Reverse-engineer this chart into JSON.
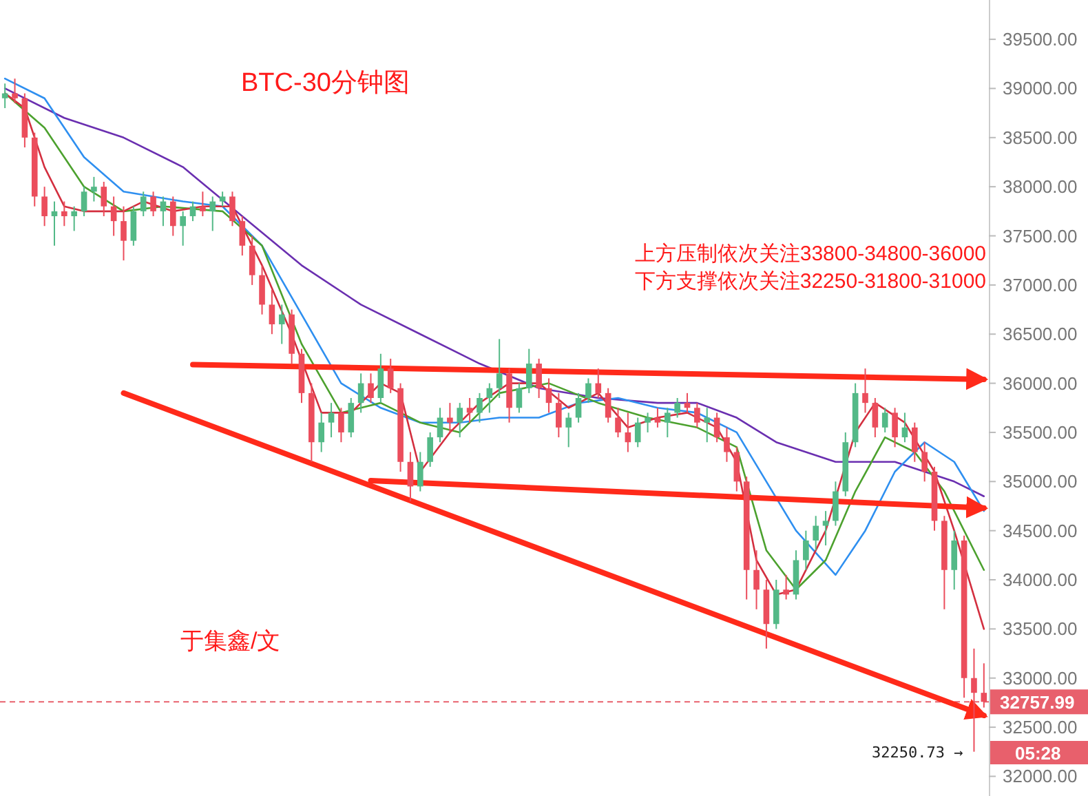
{
  "chart_data": {
    "type": "candlestick",
    "title": "BTC-30分钟图",
    "categories": [
      null,
      null,
      null,
      null,
      null,
      null,
      null,
      null,
      null,
      null,
      null,
      null,
      null,
      null,
      null,
      null,
      null,
      null,
      null,
      null,
      null,
      null,
      null,
      null,
      null,
      null,
      null,
      null,
      null,
      null,
      null,
      null,
      null,
      null,
      null,
      null,
      null,
      null,
      null,
      null,
      null,
      null,
      null,
      null,
      null,
      null,
      null,
      null,
      null,
      null,
      null,
      null,
      null,
      null,
      null,
      null,
      null,
      null,
      null,
      null,
      null,
      null,
      null,
      null,
      null,
      null,
      null,
      null,
      null,
      null,
      null,
      null,
      null,
      null,
      null,
      null,
      null,
      null,
      null,
      null,
      null,
      null,
      null,
      null,
      null,
      null,
      null,
      null,
      null,
      null,
      null,
      null,
      null,
      null,
      null,
      null,
      null,
      null,
      null,
      null
    ],
    "ohlc": [
      [
        38900,
        39050,
        38800,
        38950
      ],
      [
        38950,
        39100,
        38850,
        38900
      ],
      [
        38900,
        38950,
        38400,
        38500
      ],
      [
        38500,
        38550,
        37800,
        37900
      ],
      [
        37900,
        38000,
        37600,
        37700
      ],
      [
        37700,
        37850,
        37400,
        37750
      ],
      [
        37750,
        37850,
        37600,
        37700
      ],
      [
        37700,
        37800,
        37550,
        37750
      ],
      [
        37750,
        38000,
        37700,
        37950
      ],
      [
        37950,
        38100,
        37850,
        38000
      ],
      [
        38000,
        38050,
        37700,
        37800
      ],
      [
        37800,
        37900,
        37500,
        37650
      ],
      [
        37650,
        37800,
        37250,
        37450
      ],
      [
        37450,
        37800,
        37400,
        37750
      ],
      [
        37750,
        37950,
        37700,
        37900
      ],
      [
        37900,
        37950,
        37700,
        37750
      ],
      [
        37750,
        37900,
        37600,
        37850
      ],
      [
        37850,
        37900,
        37500,
        37600
      ],
      [
        37600,
        37750,
        37400,
        37700
      ],
      [
        37700,
        37850,
        37650,
        37800
      ],
      [
        37800,
        37950,
        37700,
        37750
      ],
      [
        37750,
        37900,
        37550,
        37850
      ],
      [
        37850,
        37950,
        37800,
        37900
      ],
      [
        37900,
        37950,
        37600,
        37650
      ],
      [
        37650,
        37700,
        37300,
        37400
      ],
      [
        37400,
        37500,
        37000,
        37100
      ],
      [
        37100,
        37200,
        36700,
        36800
      ],
      [
        36800,
        36950,
        36500,
        36600
      ],
      [
        36600,
        36800,
        36400,
        36700
      ],
      [
        36700,
        36750,
        36200,
        36300
      ],
      [
        36300,
        36350,
        35800,
        35900
      ],
      [
        35900,
        36000,
        35200,
        35400
      ],
      [
        35400,
        35700,
        35300,
        35600
      ],
      [
        35600,
        35800,
        35450,
        35700
      ],
      [
        35700,
        35750,
        35400,
        35500
      ],
      [
        35500,
        35850,
        35450,
        35800
      ],
      [
        35800,
        36100,
        35700,
        36000
      ],
      [
        36000,
        36100,
        35800,
        35850
      ],
      [
        35850,
        36300,
        35800,
        36150
      ],
      [
        36150,
        36250,
        35900,
        35950
      ],
      [
        35950,
        36000,
        35100,
        35200
      ],
      [
        35200,
        35300,
        34800,
        34950
      ],
      [
        34950,
        35300,
        34900,
        35200
      ],
      [
        35200,
        35500,
        35150,
        35450
      ],
      [
        35450,
        35750,
        35400,
        35650
      ],
      [
        35650,
        35800,
        35500,
        35600
      ],
      [
        35600,
        35800,
        35450,
        35750
      ],
      [
        35750,
        35850,
        35600,
        35700
      ],
      [
        35700,
        35900,
        35600,
        35850
      ],
      [
        35850,
        36000,
        35700,
        35950
      ],
      [
        35950,
        36450,
        35850,
        36100
      ],
      [
        36100,
        36150,
        35600,
        35750
      ],
      [
        35750,
        36000,
        35700,
        35950
      ],
      [
        35950,
        36350,
        35900,
        36200
      ],
      [
        36200,
        36250,
        35850,
        35950
      ],
      [
        35950,
        36050,
        35700,
        35800
      ],
      [
        35800,
        35900,
        35450,
        35550
      ],
      [
        35550,
        35700,
        35350,
        35650
      ],
      [
        35650,
        35900,
        35600,
        35850
      ],
      [
        35850,
        36050,
        35800,
        36000
      ],
      [
        36000,
        36150,
        35850,
        35900
      ],
      [
        35900,
        35950,
        35600,
        35650
      ],
      [
        35650,
        35750,
        35450,
        35500
      ],
      [
        35500,
        35700,
        35300,
        35400
      ],
      [
        35400,
        35650,
        35350,
        35600
      ],
      [
        35600,
        35700,
        35500,
        35650
      ],
      [
        35650,
        35750,
        35550,
        35600
      ],
      [
        35600,
        35750,
        35450,
        35700
      ],
      [
        35700,
        35850,
        35650,
        35800
      ],
      [
        35800,
        35900,
        35700,
        35750
      ],
      [
        35750,
        35800,
        35550,
        35600
      ],
      [
        35600,
        35750,
        35400,
        35650
      ],
      [
        35650,
        35700,
        35400,
        35450
      ],
      [
        35450,
        35550,
        35200,
        35300
      ],
      [
        35300,
        35350,
        34900,
        35000
      ],
      [
        35000,
        35050,
        33800,
        34100
      ],
      [
        34100,
        34300,
        33700,
        33900
      ],
      [
        33900,
        34000,
        33300,
        33550
      ],
      [
        33550,
        34000,
        33500,
        33900
      ],
      [
        33900,
        34050,
        33800,
        33850
      ],
      [
        33850,
        34300,
        33800,
        34200
      ],
      [
        34200,
        34500,
        34100,
        34400
      ],
      [
        34400,
        34650,
        34300,
        34550
      ],
      [
        34550,
        34700,
        34350,
        34600
      ],
      [
        34600,
        35000,
        34550,
        34900
      ],
      [
        34900,
        35500,
        34850,
        35400
      ],
      [
        35400,
        36000,
        35350,
        35900
      ],
      [
        35900,
        36150,
        35700,
        35800
      ],
      [
        35800,
        35850,
        35450,
        35550
      ],
      [
        35550,
        35750,
        35500,
        35700
      ],
      [
        35700,
        35750,
        35350,
        35450
      ],
      [
        35450,
        35700,
        35400,
        35550
      ],
      [
        35550,
        35600,
        35200,
        35300
      ],
      [
        35300,
        35400,
        35000,
        35100
      ],
      [
        35100,
        35150,
        34500,
        34600
      ],
      [
        34600,
        34650,
        33700,
        34100
      ],
      [
        34100,
        34500,
        33900,
        34400
      ],
      [
        34400,
        34450,
        32800,
        33000
      ],
      [
        33000,
        33300,
        32250.73,
        32850
      ],
      [
        32850,
        33150,
        32700,
        32757.99
      ]
    ],
    "series": [
      {
        "type": "line",
        "color": "#6a2fb0",
        "values": [
          39000,
          null,
          null,
          null,
          null,
          null,
          38700,
          null,
          null,
          null,
          null,
          null,
          38500,
          null,
          null,
          null,
          null,
          null,
          38200,
          null,
          null,
          null,
          null,
          null,
          37700,
          null,
          null,
          null,
          null,
          null,
          37200,
          null,
          null,
          null,
          null,
          null,
          36800,
          null,
          null,
          null,
          null,
          null,
          36500,
          null,
          null,
          null,
          null,
          null,
          36200,
          null,
          null,
          null,
          null,
          null,
          35950,
          null,
          null,
          null,
          null,
          null,
          35850,
          null,
          null,
          null,
          null,
          null,
          35800,
          null,
          null,
          null,
          35800,
          null,
          null,
          null,
          35650,
          null,
          null,
          null,
          35400,
          null,
          null,
          null,
          null,
          null,
          35200,
          null,
          null,
          null,
          null,
          null,
          35200,
          null,
          null,
          null,
          null,
          null,
          35000,
          null,
          null,
          34850
        ]
      },
      {
        "type": "line",
        "color": "#2e8ff0",
        "values": [
          39100,
          null,
          null,
          null,
          38900,
          null,
          null,
          null,
          38300,
          null,
          null,
          null,
          37950,
          null,
          null,
          null,
          null,
          null,
          37850,
          null,
          null,
          null,
          37800,
          null,
          null,
          null,
          37400,
          null,
          null,
          null,
          36700,
          null,
          null,
          null,
          36000,
          null,
          null,
          null,
          35750,
          null,
          null,
          null,
          35600,
          null,
          null,
          null,
          35600,
          null,
          null,
          null,
          35650,
          null,
          null,
          null,
          35650,
          null,
          null,
          null,
          35800,
          null,
          null,
          null,
          35850,
          null,
          null,
          null,
          35750,
          null,
          null,
          null,
          35700,
          null,
          null,
          null,
          35500,
          null,
          null,
          35000,
          null,
          null,
          34500,
          null,
          null,
          null,
          34050,
          null,
          null,
          34500,
          null,
          null,
          35100,
          null,
          null,
          35400,
          null,
          null,
          35200,
          null,
          null,
          34700
        ]
      },
      {
        "type": "line",
        "color": "#4ca12e",
        "values": [
          38950,
          null,
          null,
          null,
          38600,
          null,
          null,
          null,
          38000,
          null,
          null,
          null,
          37750,
          null,
          null,
          null,
          37800,
          null,
          null,
          null,
          null,
          null,
          37750,
          null,
          null,
          null,
          37400,
          null,
          null,
          null,
          36400,
          null,
          null,
          null,
          35700,
          null,
          null,
          null,
          35800,
          null,
          null,
          null,
          35600,
          null,
          null,
          null,
          35500,
          null,
          null,
          null,
          35900,
          null,
          null,
          null,
          null,
          36000,
          null,
          null,
          null,
          null,
          35800,
          null,
          null,
          null,
          null,
          35650,
          null,
          null,
          null,
          null,
          35550,
          null,
          null,
          null,
          35350,
          null,
          null,
          34300,
          null,
          null,
          33900,
          null,
          null,
          34200,
          null,
          null,
          34900,
          null,
          null,
          35450,
          null,
          null,
          35300,
          null,
          null,
          34900,
          null,
          null,
          null,
          34100
        ]
      },
      {
        "type": "line",
        "color": "#d32f3f",
        "values": [
          38950,
          null,
          38800,
          null,
          38200,
          null,
          37800,
          null,
          37750,
          null,
          null,
          null,
          37750,
          null,
          37850,
          null,
          null,
          37750,
          null,
          null,
          37800,
          null,
          null,
          37800,
          null,
          null,
          37200,
          null,
          null,
          36500,
          null,
          null,
          35700,
          null,
          null,
          35700,
          null,
          null,
          36000,
          null,
          35900,
          null,
          35100,
          null,
          null,
          35500,
          null,
          null,
          35800,
          null,
          null,
          36000,
          null,
          null,
          36000,
          null,
          null,
          35750,
          null,
          null,
          35900,
          null,
          null,
          35550,
          null,
          null,
          35650,
          null,
          null,
          35700,
          null,
          null,
          35550,
          null,
          35200,
          null,
          34200,
          null,
          33850,
          null,
          33900,
          null,
          null,
          34500,
          null,
          null,
          35500,
          null,
          35800,
          null,
          null,
          35600,
          null,
          null,
          35100,
          null,
          34500,
          null,
          null,
          33500
        ]
      },
      {
        "type": "line",
        "color": "#ff2a1a",
        "values": [
          null,
          null,
          null,
          null,
          null,
          null,
          null,
          null,
          null,
          null,
          null,
          null,
          null,
          null,
          null,
          null,
          null,
          null,
          null,
          36190,
          null,
          null,
          null,
          null,
          null,
          null,
          null,
          null,
          null,
          null,
          null,
          null,
          null,
          null,
          null,
          null,
          null,
          null,
          null,
          null,
          null,
          null,
          null,
          null,
          null,
          null,
          null,
          null,
          null,
          null,
          null,
          null,
          null,
          null,
          null,
          null,
          null,
          null,
          null,
          null,
          null,
          null,
          null,
          null,
          null,
          null,
          null,
          null,
          null,
          null,
          null,
          null,
          null,
          null,
          null,
          null,
          null,
          null,
          null,
          null,
          null,
          null,
          null,
          null,
          null,
          null,
          null,
          null,
          null,
          null,
          null,
          null,
          null,
          null,
          null,
          null,
          null,
          null,
          null,
          36040
        ]
      },
      {
        "type": "line",
        "color": "#ff2a1a",
        "values": [
          null,
          null,
          null,
          null,
          null,
          null,
          null,
          null,
          null,
          null,
          null,
          null,
          null,
          null,
          null,
          null,
          null,
          null,
          null,
          null,
          null,
          null,
          null,
          null,
          null,
          null,
          null,
          null,
          null,
          null,
          null,
          null,
          null,
          null,
          null,
          null,
          null,
          35010,
          null,
          null,
          null,
          null,
          null,
          null,
          null,
          null,
          null,
          null,
          null,
          null,
          null,
          null,
          null,
          null,
          null,
          null,
          null,
          null,
          null,
          null,
          null,
          null,
          null,
          null,
          null,
          null,
          null,
          null,
          null,
          null,
          null,
          null,
          null,
          null,
          null,
          null,
          null,
          null,
          null,
          null,
          null,
          null,
          null,
          null,
          null,
          null,
          null,
          null,
          null,
          null,
          null,
          null,
          null,
          null,
          null,
          null,
          null,
          null,
          null,
          34730
        ]
      },
      {
        "type": "line",
        "color": "#ff2a1a",
        "values": [
          null,
          null,
          null,
          null,
          null,
          null,
          null,
          null,
          null,
          null,
          null,
          null,
          35900,
          null,
          null,
          null,
          null,
          null,
          null,
          null,
          null,
          null,
          null,
          null,
          null,
          null,
          null,
          null,
          null,
          null,
          null,
          null,
          null,
          null,
          null,
          null,
          null,
          null,
          null,
          null,
          null,
          null,
          null,
          null,
          null,
          null,
          null,
          null,
          null,
          null,
          null,
          null,
          null,
          null,
          null,
          null,
          null,
          null,
          null,
          null,
          null,
          null,
          null,
          null,
          null,
          null,
          null,
          null,
          null,
          null,
          null,
          null,
          null,
          null,
          null,
          null,
          null,
          null,
          null,
          null,
          null,
          null,
          null,
          null,
          null,
          null,
          null,
          null,
          null,
          null,
          null,
          null,
          null,
          null,
          null,
          null,
          null,
          null,
          null,
          32620
        ]
      }
    ],
    "ylim": [
      31800,
      39900
    ],
    "yticks": [
      {
        "value": 32000,
        "label": "32000.00"
      },
      {
        "value": 32500,
        "label": "32500.00"
      },
      {
        "value": 33000,
        "label": "33000.00"
      },
      {
        "value": 33500,
        "label": "33500.00"
      },
      {
        "value": 34000,
        "label": "34000.00"
      },
      {
        "value": 34500,
        "label": "34500.00"
      },
      {
        "value": 35000,
        "label": "35000.00"
      },
      {
        "value": 35500,
        "label": "35500.00"
      },
      {
        "value": 36000,
        "label": "36000.00"
      },
      {
        "value": 36500,
        "label": "36500.00"
      },
      {
        "value": 37000,
        "label": "37000.00"
      },
      {
        "value": 37500,
        "label": "37500.00"
      },
      {
        "value": 38000,
        "label": "38000.00"
      },
      {
        "value": 38500,
        "label": "38500.00"
      },
      {
        "value": 39000,
        "label": "39000.00"
      },
      {
        "value": 39500,
        "label": "39500.00"
      }
    ],
    "tick_labels": "y",
    "ref_lines": [
      {
        "axis": "y",
        "value": 32757.99,
        "label": "32757.99",
        "color": "#e8606c",
        "line_style": "dashed"
      }
    ],
    "annotations": [
      "上方压制依次关注33800-34800-36000",
      "下方支撑依次关注32250-31800-31000",
      "于集鑫/文",
      "05:28",
      "32250.73 →"
    ]
  }
}
